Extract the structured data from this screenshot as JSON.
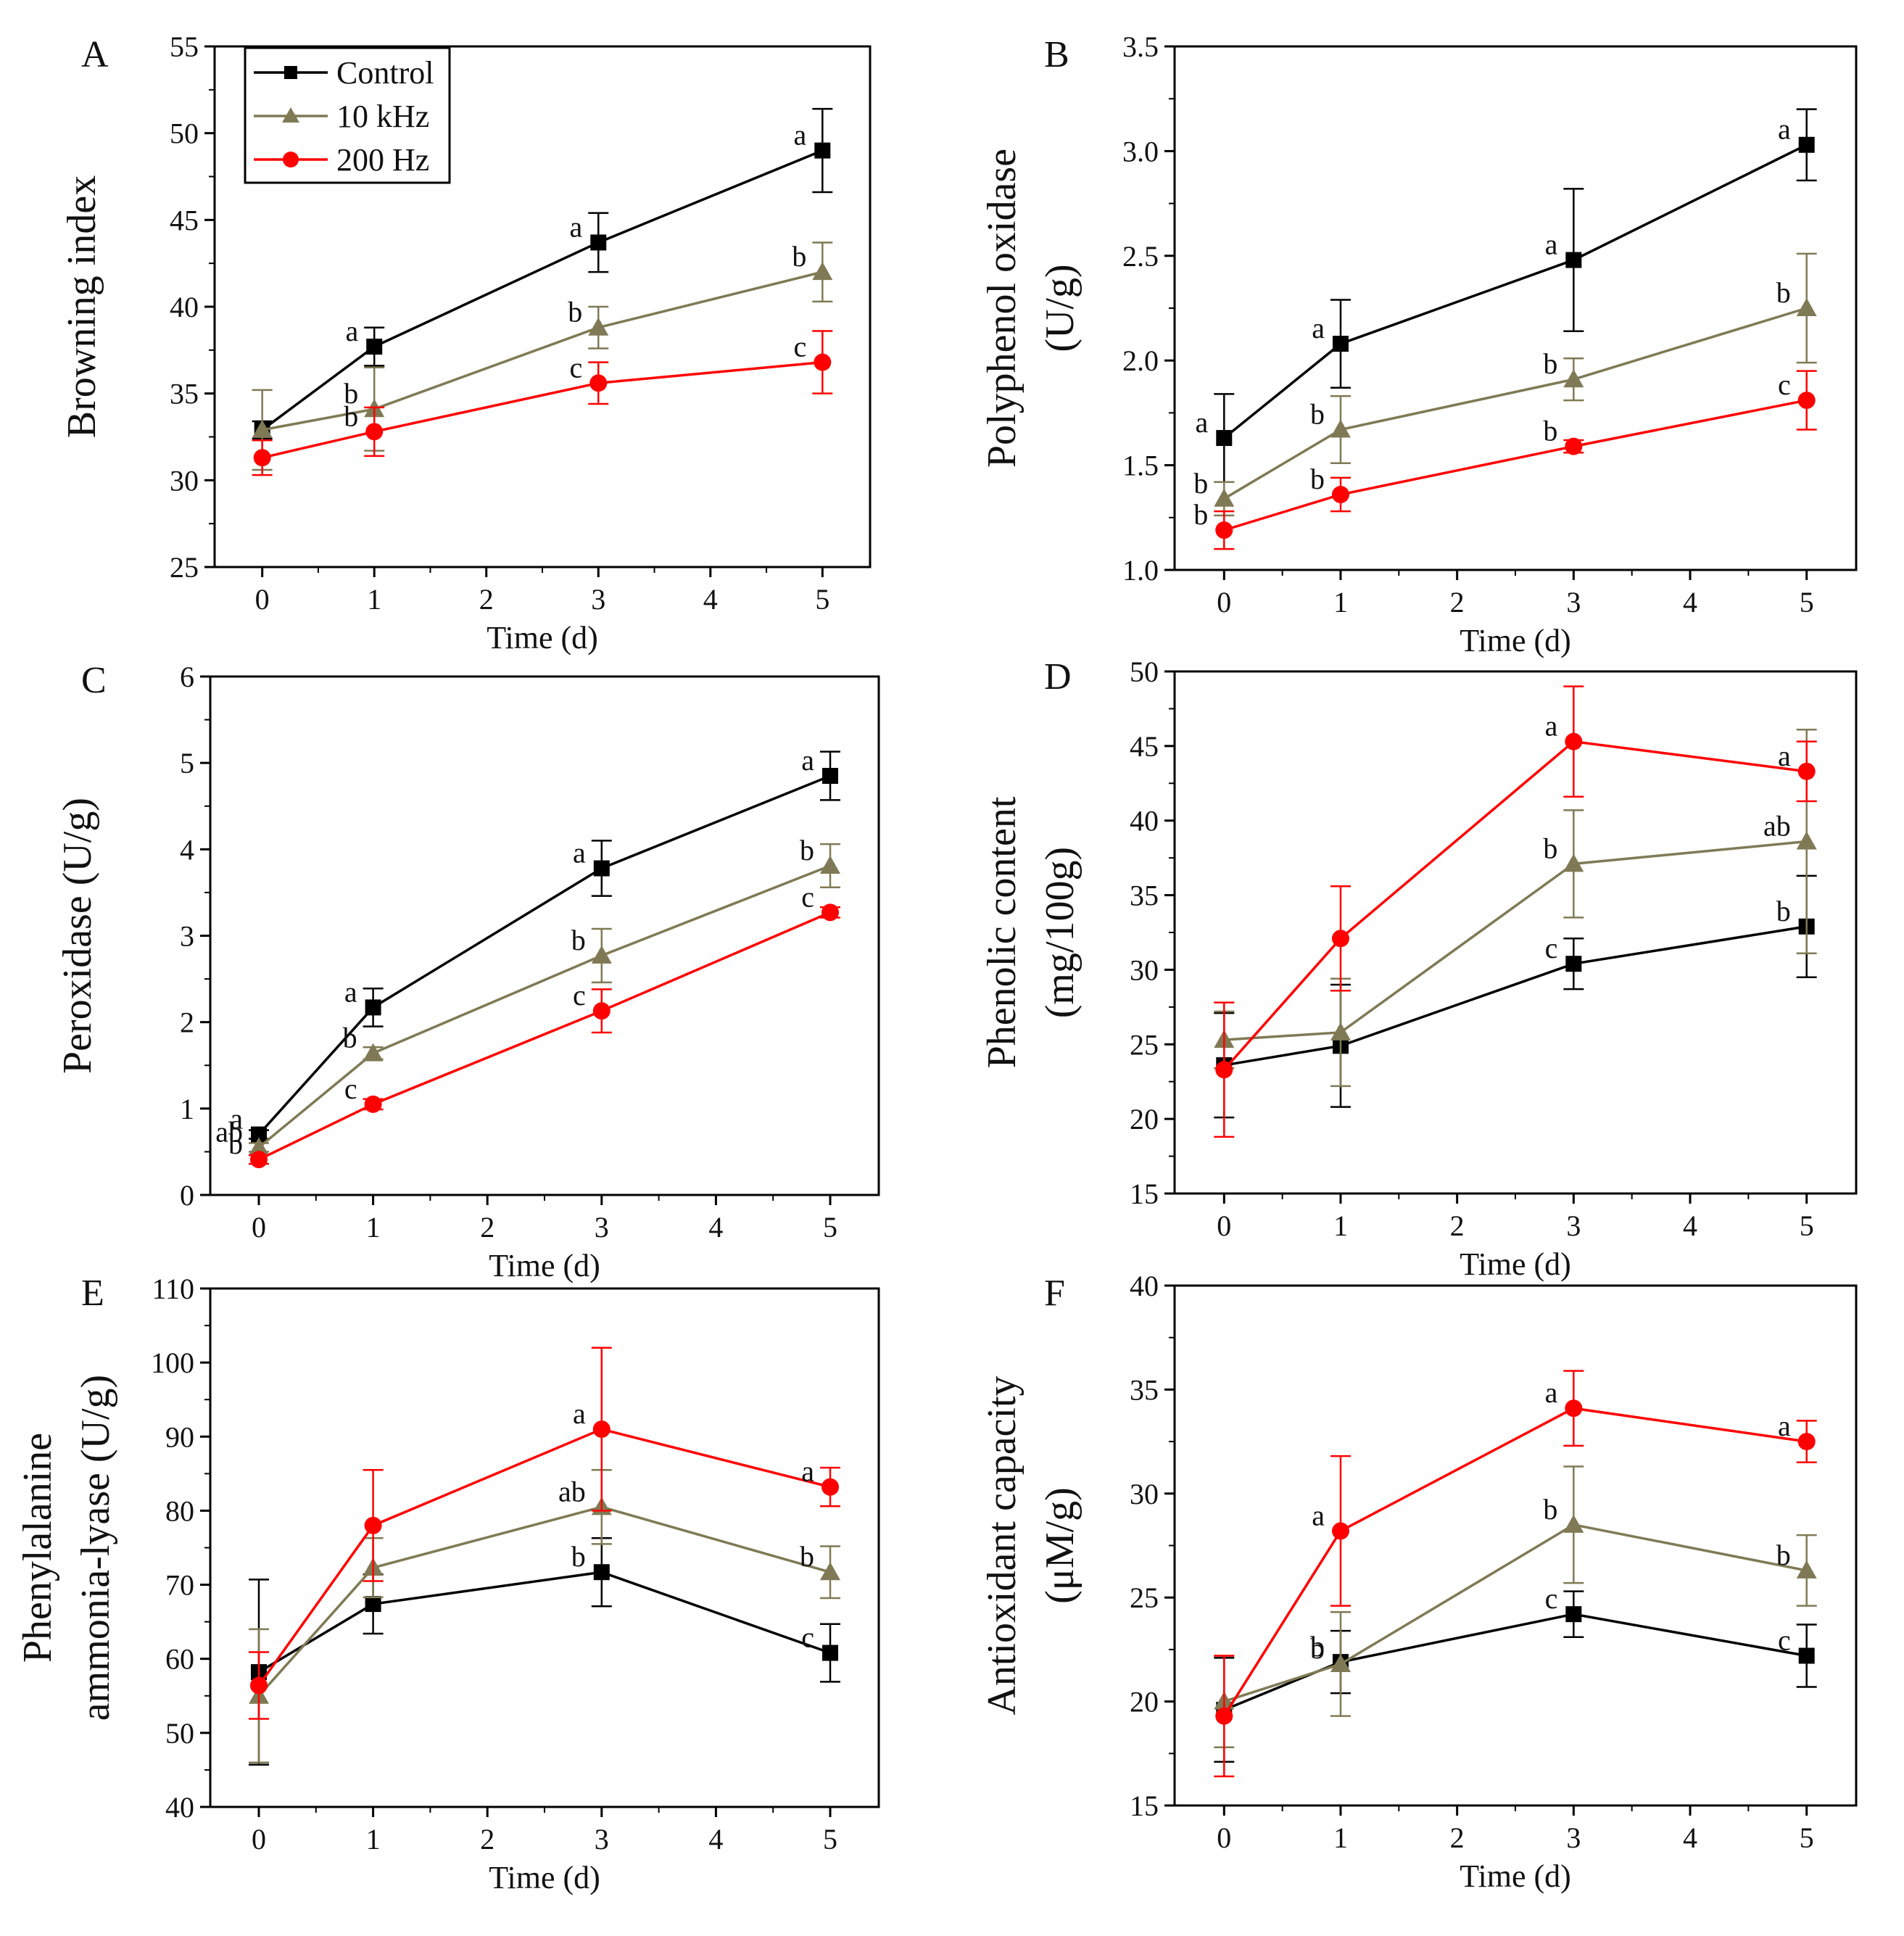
{
  "chart_data": [
    {
      "type": "line",
      "panel": "A",
      "title": "",
      "xlabel": "Time (d)",
      "ylabel_lines": [
        "Browning index"
      ],
      "x_ticks": [
        0,
        1,
        2,
        3,
        4,
        5
      ],
      "ylim": [
        25,
        55
      ],
      "y_ticks": [
        25,
        30,
        35,
        40,
        45,
        50,
        55
      ],
      "legend": {
        "placement": "top-left",
        "entries": [
          {
            "name": "Control",
            "marker": "square",
            "color": "#000000"
          },
          {
            "name": "10 kHz",
            "marker": "triangle",
            "color": "#7f7a55"
          },
          {
            "name": "200 Hz",
            "marker": "circle",
            "color": "#ff0000"
          }
        ]
      },
      "series": [
        {
          "name": "Control",
          "marker": "square",
          "color": "#000000",
          "x": [
            0,
            1,
            3,
            5
          ],
          "y": [
            32.9,
            37.7,
            43.7,
            49.0
          ],
          "err": [
            0.5,
            1.1,
            1.7,
            2.4
          ],
          "letters": [
            "",
            "a",
            "a",
            "a"
          ]
        },
        {
          "name": "10 kHz",
          "marker": "triangle",
          "color": "#7f7a55",
          "x": [
            0,
            1,
            3,
            5
          ],
          "y": [
            32.9,
            34.1,
            38.8,
            42.0
          ],
          "err": [
            2.3,
            2.4,
            1.2,
            1.7
          ],
          "letters": [
            "",
            "b",
            "b",
            "b"
          ]
        },
        {
          "name": "200 Hz",
          "marker": "circle",
          "color": "#ff0000",
          "x": [
            0,
            1,
            3,
            5
          ],
          "y": [
            31.3,
            32.8,
            35.6,
            36.8
          ],
          "err": [
            1.0,
            1.4,
            1.2,
            1.8
          ],
          "letters": [
            "",
            "b",
            "c",
            "c"
          ]
        }
      ]
    },
    {
      "type": "line",
      "panel": "B",
      "title": "",
      "xlabel": "Time (d)",
      "ylabel_lines": [
        "Polyphenol oxidase",
        "(U/g)"
      ],
      "x_ticks": [
        0,
        1,
        2,
        3,
        4,
        5
      ],
      "ylim": [
        1.0,
        3.5
      ],
      "y_ticks": [
        1.0,
        1.5,
        2.0,
        2.5,
        3.0,
        3.5
      ],
      "series": [
        {
          "name": "Control",
          "marker": "square",
          "color": "#000000",
          "x": [
            0,
            1,
            3,
            5
          ],
          "y": [
            1.63,
            2.08,
            2.48,
            3.03
          ],
          "err": [
            0.21,
            0.21,
            0.34,
            0.17
          ],
          "letters": [
            "a",
            "a",
            "a",
            "a"
          ]
        },
        {
          "name": "10 kHz",
          "marker": "triangle",
          "color": "#7f7a55",
          "x": [
            0,
            1,
            3,
            5
          ],
          "y": [
            1.34,
            1.67,
            1.91,
            2.25
          ],
          "err": [
            0.08,
            0.16,
            0.1,
            0.26
          ],
          "letters": [
            "b",
            "b",
            "b",
            "b"
          ]
        },
        {
          "name": "200 Hz",
          "marker": "circle",
          "color": "#ff0000",
          "x": [
            0,
            1,
            3,
            5
          ],
          "y": [
            1.19,
            1.36,
            1.59,
            1.81
          ],
          "err": [
            0.09,
            0.08,
            0.03,
            0.14
          ],
          "letters": [
            "b",
            "b",
            "b",
            "c"
          ]
        }
      ]
    },
    {
      "type": "line",
      "panel": "C",
      "title": "",
      "xlabel": "Time (d)",
      "ylabel_lines": [
        "Peroxidase (U/g)"
      ],
      "x_ticks": [
        0,
        1,
        2,
        3,
        4,
        5
      ],
      "ylim": [
        0,
        6
      ],
      "y_ticks": [
        0,
        1,
        2,
        3,
        4,
        5,
        6
      ],
      "series": [
        {
          "name": "Control",
          "marker": "square",
          "color": "#000000",
          "x": [
            0,
            1,
            3,
            5
          ],
          "y": [
            0.7,
            2.17,
            3.78,
            4.85
          ],
          "err": [
            0.05,
            0.22,
            0.32,
            0.28
          ],
          "letters": [
            "a",
            "a",
            "a",
            "a"
          ]
        },
        {
          "name": "10 kHz",
          "marker": "triangle",
          "color": "#7f7a55",
          "x": [
            0,
            1,
            3,
            5
          ],
          "y": [
            0.55,
            1.64,
            2.77,
            3.81
          ],
          "err": [
            0.05,
            0.07,
            0.31,
            0.25
          ],
          "letters": [
            "ab",
            "b",
            "b",
            "b"
          ]
        },
        {
          "name": "200 Hz",
          "marker": "circle",
          "color": "#ff0000",
          "x": [
            0,
            1,
            3,
            5
          ],
          "y": [
            0.41,
            1.05,
            2.13,
            3.27
          ],
          "err": [
            0.05,
            0.06,
            0.25,
            0.06
          ],
          "letters": [
            "b",
            "c",
            "c",
            "c"
          ]
        }
      ]
    },
    {
      "type": "line",
      "panel": "D",
      "title": "",
      "xlabel": "Time (d)",
      "ylabel_lines": [
        "Phenolic content",
        "(mg/100g)"
      ],
      "x_ticks": [
        0,
        1,
        2,
        3,
        4,
        5
      ],
      "ylim": [
        15,
        50
      ],
      "y_ticks": [
        15,
        20,
        25,
        30,
        35,
        40,
        45,
        50
      ],
      "series": [
        {
          "name": "Control",
          "marker": "square",
          "color": "#000000",
          "x": [
            0,
            1,
            3,
            5
          ],
          "y": [
            23.6,
            24.9,
            30.4,
            32.9
          ],
          "err": [
            3.5,
            4.1,
            1.7,
            3.4
          ],
          "letters": [
            "",
            "",
            "c",
            "b"
          ]
        },
        {
          "name": "10 kHz",
          "marker": "triangle",
          "color": "#7f7a55",
          "x": [
            0,
            1,
            3,
            5
          ],
          "y": [
            25.3,
            25.8,
            37.1,
            38.6
          ],
          "err": [
            1.9,
            3.6,
            3.6,
            7.5
          ],
          "letters": [
            "",
            "",
            "b",
            "ab"
          ]
        },
        {
          "name": "200 Hz",
          "marker": "circle",
          "color": "#ff0000",
          "x": [
            0,
            1,
            3,
            5
          ],
          "y": [
            23.3,
            32.1,
            45.3,
            43.3
          ],
          "err": [
            4.5,
            3.5,
            3.7,
            2.0
          ],
          "letters": [
            "",
            "",
            "a",
            "a"
          ]
        }
      ]
    },
    {
      "type": "line",
      "panel": "E",
      "title": "",
      "xlabel": "Time (d)",
      "ylabel_lines": [
        "Phenylalanine",
        "ammonia-lyase (U/g)"
      ],
      "x_ticks": [
        0,
        1,
        2,
        3,
        4,
        5
      ],
      "ylim": [
        40,
        110
      ],
      "y_ticks": [
        40,
        50,
        60,
        70,
        80,
        90,
        100,
        110
      ],
      "series": [
        {
          "name": "Control",
          "marker": "square",
          "color": "#000000",
          "x": [
            0,
            1,
            3,
            5
          ],
          "y": [
            58.2,
            67.4,
            71.7,
            60.8
          ],
          "err": [
            12.5,
            4.0,
            4.6,
            3.9
          ],
          "letters": [
            "",
            "",
            "b",
            "c"
          ]
        },
        {
          "name": "10 kHz",
          "marker": "triangle",
          "color": "#7f7a55",
          "x": [
            0,
            1,
            3,
            5
          ],
          "y": [
            55.0,
            72.3,
            80.5,
            71.7
          ],
          "err": [
            9.0,
            4.0,
            5.0,
            3.5
          ],
          "letters": [
            "",
            "",
            "ab",
            "b"
          ]
        },
        {
          "name": "200 Hz",
          "marker": "circle",
          "color": "#ff0000",
          "x": [
            0,
            1,
            3,
            5
          ],
          "y": [
            56.4,
            78.0,
            91.0,
            83.2
          ],
          "err": [
            4.5,
            7.5,
            11.0,
            2.6
          ],
          "letters": [
            "",
            "",
            "a",
            "a"
          ]
        }
      ]
    },
    {
      "type": "line",
      "panel": "F",
      "title": "",
      "xlabel": "Time (d)",
      "ylabel_lines": [
        "Antioxidant capacity",
        "(μM/g)"
      ],
      "x_ticks": [
        0,
        1,
        2,
        3,
        4,
        5
      ],
      "ylim": [
        15,
        40
      ],
      "y_ticks": [
        15,
        20,
        25,
        30,
        35,
        40
      ],
      "series": [
        {
          "name": "Control",
          "marker": "square",
          "color": "#000000",
          "x": [
            0,
            1,
            3,
            5
          ],
          "y": [
            19.6,
            21.9,
            24.2,
            22.2
          ],
          "err": [
            2.5,
            1.5,
            1.1,
            1.5
          ],
          "letters": [
            "",
            "b",
            "c",
            "c"
          ]
        },
        {
          "name": "10 kHz",
          "marker": "triangle",
          "color": "#7f7a55",
          "x": [
            0,
            1,
            3,
            5
          ],
          "y": [
            20.0,
            21.8,
            28.5,
            26.3
          ],
          "err": [
            2.2,
            2.5,
            2.8,
            1.7
          ],
          "letters": [
            "",
            "b",
            "b",
            "b"
          ]
        },
        {
          "name": "200 Hz",
          "marker": "circle",
          "color": "#ff0000",
          "x": [
            0,
            1,
            3,
            5
          ],
          "y": [
            19.3,
            28.2,
            34.1,
            32.5
          ],
          "err": [
            2.9,
            3.6,
            1.8,
            1.0
          ],
          "letters": [
            "",
            "a",
            "a",
            "a"
          ]
        }
      ]
    }
  ]
}
